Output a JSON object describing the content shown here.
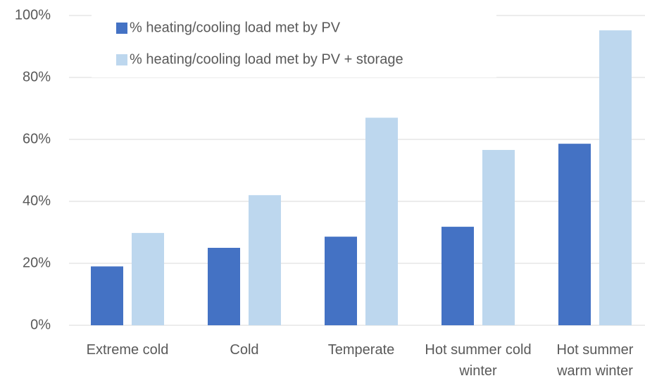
{
  "chart_data": {
    "type": "bar",
    "categories": [
      "Extreme cold",
      "Cold",
      "Temperate",
      "Hot summer cold winter",
      "Hot summer warm winter"
    ],
    "series": [
      {
        "name": "% heating/cooling load met by PV",
        "color": "#4472c4",
        "values": [
          19,
          25,
          28.6,
          31.8,
          58.6
        ]
      },
      {
        "name": "% heating/cooling load met by PV + storage",
        "color": "#bdd7ee",
        "values": [
          29.8,
          42,
          67,
          56.6,
          95.2
        ]
      }
    ],
    "ylim": [
      0,
      100
    ],
    "yticks": [
      {
        "value": 0,
        "label": "0%"
      },
      {
        "value": 20,
        "label": "20%"
      },
      {
        "value": 40,
        "label": "40%"
      },
      {
        "value": 60,
        "label": "60%"
      },
      {
        "value": 80,
        "label": "80%"
      },
      {
        "value": 100,
        "label": "100%"
      }
    ],
    "grid": true,
    "legend": "top"
  }
}
